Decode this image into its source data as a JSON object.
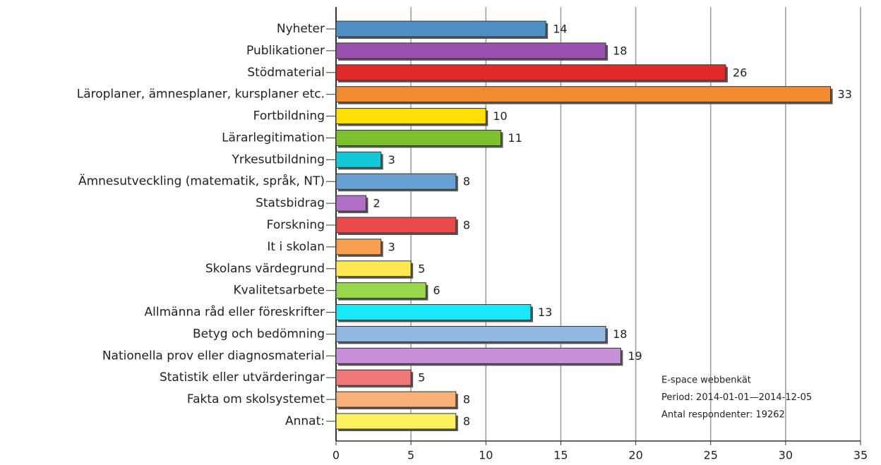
{
  "chart_data": {
    "type": "barh",
    "categories": [
      "Nyheter",
      "Publikationer",
      "Stödmaterial",
      "Läroplaner, ämnesplaner, kursplaner etc.",
      "Fortbildning",
      "Lärarlegitimation",
      "Yrkesutbildning",
      "Ämnesutveckling (matematik, språk, NT)",
      "Statsbidrag",
      "Forskning",
      "It i skolan",
      "Skolans värdegrund",
      "Kvalitetsarbete",
      "Allmänna råd eller föreskrifter",
      "Betyg och bedömning",
      "Nationella prov eller diagnosmaterial",
      "Statistik eller utvärderingar",
      "Fakta om skolsystemet",
      "Annat:"
    ],
    "values": [
      14,
      18,
      26,
      33,
      10,
      11,
      3,
      8,
      2,
      8,
      3,
      5,
      6,
      13,
      18,
      19,
      5,
      8,
      8
    ],
    "colors": [
      "#4f8fc8",
      "#9b4fb0",
      "#e02a2a",
      "#f28a30",
      "#ffe000",
      "#7cc22e",
      "#14c8d8",
      "#6a9fd4",
      "#b070c8",
      "#e84848",
      "#f8a050",
      "#ffe850",
      "#98d84a",
      "#18e8f8",
      "#90b8e0",
      "#c890d8",
      "#f07878",
      "#f8b078",
      "#fff060"
    ],
    "xlim": [
      0,
      35
    ],
    "xticks": [
      0,
      5,
      10,
      15,
      20,
      25,
      30,
      35
    ],
    "grid": true,
    "annotations": [
      "E-space webbenkät",
      "Period: 2014-01-01—2014-12-05",
      "Antal respondenter: 19262"
    ]
  }
}
